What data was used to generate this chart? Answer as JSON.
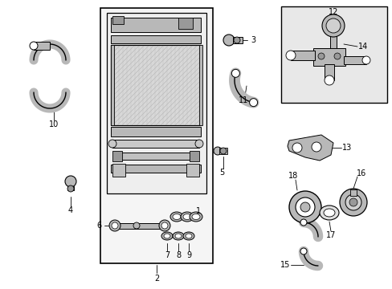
{
  "bg_color": "#ffffff",
  "line_color": "#000000",
  "gray_fill": "#c8c8c8",
  "light_gray": "#e8e8e8",
  "mid_gray": "#b8b8b8",
  "dark_gray": "#999999",
  "fig_width": 4.89,
  "fig_height": 3.6,
  "dpi": 100,
  "label_fs": 7.0
}
